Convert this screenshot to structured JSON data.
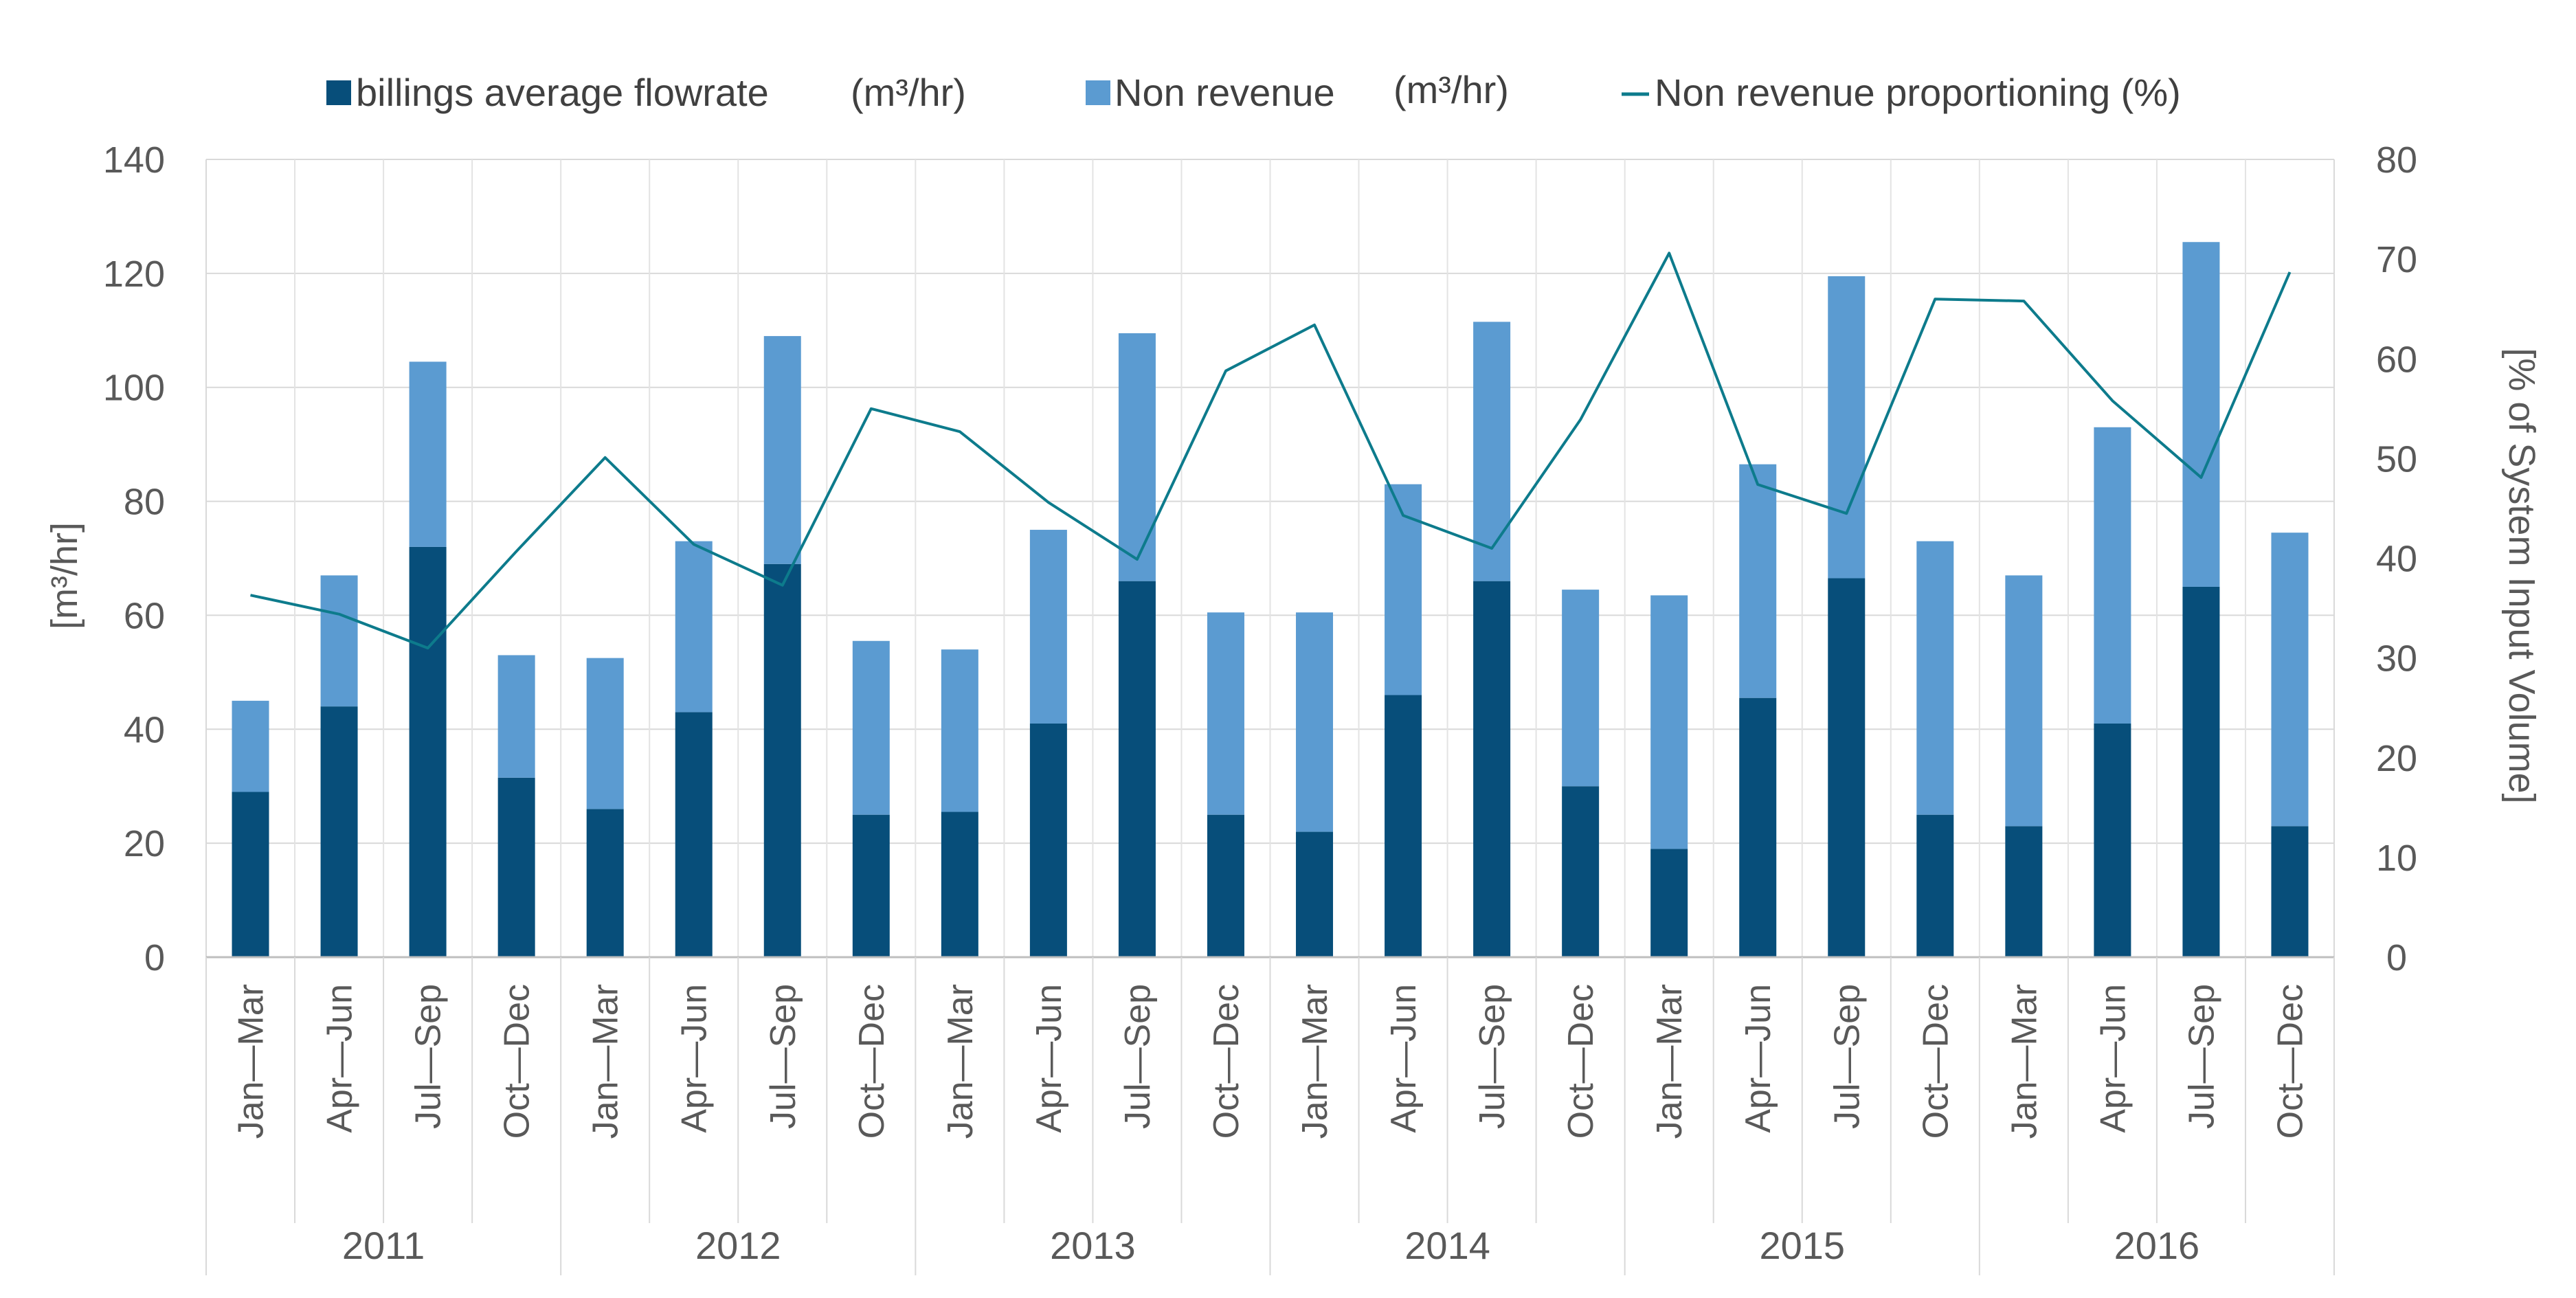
{
  "chart_data": {
    "type": "bar",
    "stacked": true,
    "periods": [
      "Jan—Mar",
      "Apr—Jun",
      "Jul—Sep",
      "Oct—Dec"
    ],
    "years": [
      "2011",
      "2012",
      "2013",
      "2014",
      "2015",
      "2016"
    ],
    "series": [
      {
        "name": "billings average flowrate",
        "unit": "(m³/hr)",
        "color": "#074e7a",
        "axis": "left",
        "values": [
          29,
          44,
          72,
          31.5,
          26,
          43,
          69,
          25,
          25.5,
          41,
          66,
          25,
          22,
          46,
          66,
          30,
          19,
          45.5,
          66.5,
          25,
          23,
          41,
          65,
          23
        ]
      },
      {
        "name": "Non revenue",
        "unit": "(m³/hr)",
        "color": "#5b9bd1",
        "axis": "left",
        "values": [
          16,
          23,
          32.5,
          21.5,
          26.5,
          30,
          40,
          30.5,
          28.5,
          34,
          43.5,
          35.5,
          38.5,
          37,
          45.5,
          34.5,
          44.5,
          41,
          53,
          48,
          44,
          52,
          60.5,
          51.5
        ]
      },
      {
        "name": "Non revenue proportioning (%)",
        "type": "line",
        "color": "#0d7b8c",
        "axis": "right",
        "values": [
          36.3,
          34.4,
          31,
          40.7,
          50.1,
          41.4,
          37.3,
          55,
          52.7,
          45.6,
          39.9,
          58.8,
          63.4,
          44.3,
          41,
          53.9,
          70.6,
          47.4,
          44.5,
          66,
          65.8,
          55.8,
          48.1,
          68.7
        ]
      }
    ],
    "y_left": {
      "label": "[m³/hr]",
      "ylim": [
        0,
        140
      ],
      "ticks": [
        "0",
        "20",
        "40",
        "60",
        "80",
        "100",
        "120",
        "140"
      ]
    },
    "y_right": {
      "label": "[% of System Input Volume]",
      "ylim": [
        0,
        80
      ],
      "ticks": [
        "0",
        "10",
        "20",
        "30",
        "40",
        "50",
        "60",
        "70",
        "80"
      ]
    },
    "grid": true,
    "legend_position": "top"
  }
}
